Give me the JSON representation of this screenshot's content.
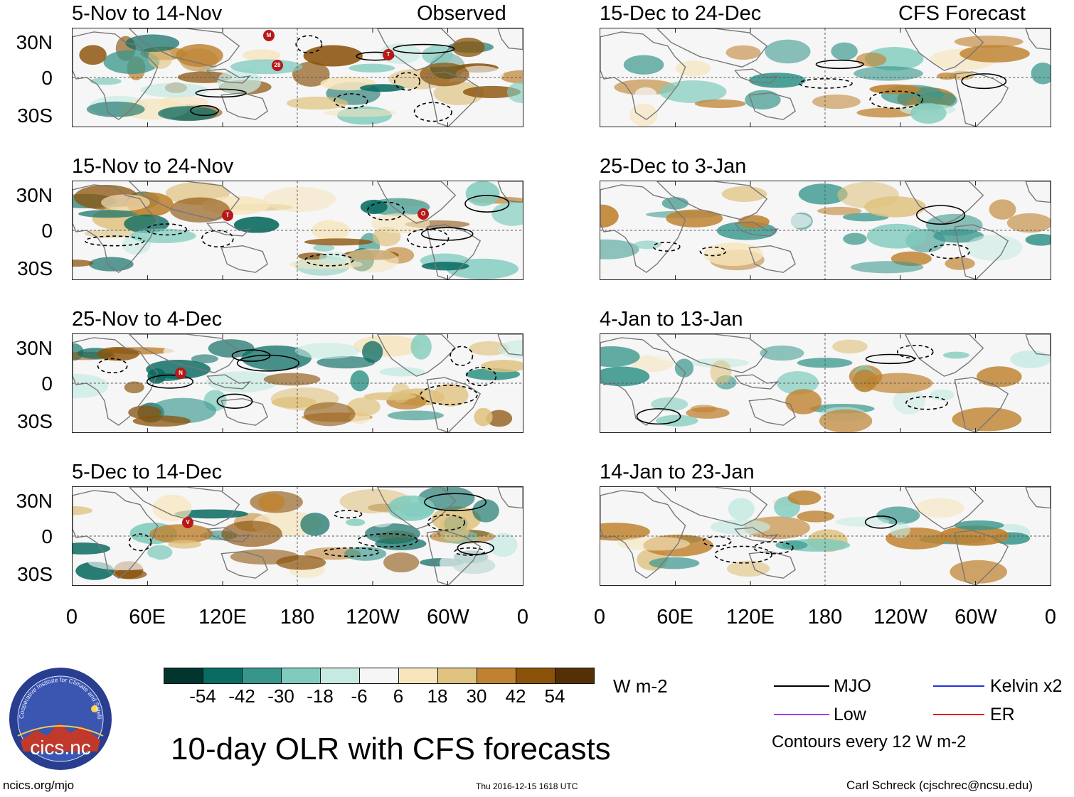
{
  "left_header": {
    "period": "5-Nov to 14-Nov",
    "label": "Observed"
  },
  "right_header": {
    "period": "15-Dec to 24-Dec",
    "label": "CFS Forecast"
  },
  "panels_left": [
    {
      "period": "5-Nov to 14-Nov"
    },
    {
      "period": "15-Nov to 24-Nov"
    },
    {
      "period": "25-Nov to 4-Dec"
    },
    {
      "period": "5-Dec to 14-Dec"
    }
  ],
  "panels_right": [
    {
      "period": "15-Dec to 24-Dec"
    },
    {
      "period": "25-Dec to 3-Jan"
    },
    {
      "period": "4-Jan to 13-Jan"
    },
    {
      "period": "14-Jan to 23-Jan"
    }
  ],
  "y_ticks": [
    "30N",
    "0",
    "30S"
  ],
  "x_ticks": [
    "0",
    "60E",
    "120E",
    "180",
    "120W",
    "60W",
    "0"
  ],
  "storm_markers": {
    "p1": [
      "M",
      "28",
      "T"
    ],
    "p2": [
      "T",
      "O"
    ],
    "p3": [
      "N"
    ],
    "p4": [
      "V"
    ]
  },
  "colorbar": {
    "labels": [
      "-54",
      "-42",
      "-30",
      "-18",
      "-6",
      "6",
      "18",
      "30",
      "42",
      "54"
    ],
    "colors": [
      "#01352e",
      "#0a6b62",
      "#37968b",
      "#80cbbd",
      "#c6eae2",
      "#f6f6f6",
      "#f6e5bd",
      "#dfc27f",
      "#bf8230",
      "#8b520a",
      "#553006"
    ],
    "units": "W m-2"
  },
  "legend": {
    "mjo": "MJO",
    "kelvin": "Kelvin x2",
    "low": "Low",
    "er": "ER",
    "contours": "Contours every 12 W m-2",
    "colors": {
      "mjo": "#000000",
      "kelvin": "#2233dd",
      "low": "#a040e0",
      "er": "#e02020"
    }
  },
  "logo": {
    "text": "cics.nc",
    "ring_text": "Cooperative Institute for Climate and Satellites"
  },
  "title": "10-day OLR with CFS forecasts",
  "footer": {
    "url": "ncics.org/mjo",
    "timestamp": "Thu 2016-12-15 1618 UTC",
    "credit": "Carl Schreck (cjschrec@ncsu.edu)"
  }
}
